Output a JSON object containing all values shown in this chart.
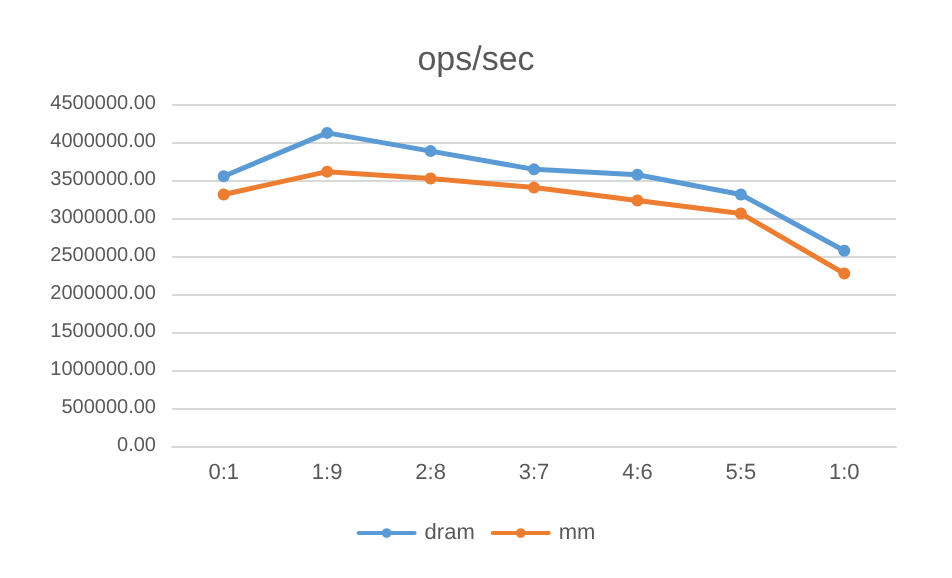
{
  "chart_data": {
    "type": "line",
    "title": "ops/sec",
    "categories": [
      "0:1",
      "1:9",
      "2:8",
      "3:7",
      "4:6",
      "5:5",
      "1:0"
    ],
    "series": [
      {
        "name": "dram",
        "color": "#5b9bd5",
        "values": [
          3550000,
          4120000,
          3880000,
          3640000,
          3570000,
          3310000,
          2570000
        ]
      },
      {
        "name": "mm",
        "color": "#ed7d31",
        "values": [
          3310000,
          3610000,
          3520000,
          3400000,
          3230000,
          3060000,
          2270000
        ]
      }
    ],
    "ylim": [
      0,
      4500000
    ],
    "yticks": [
      {
        "value": 0,
        "label": "0.00"
      },
      {
        "value": 500000,
        "label": "500000.00"
      },
      {
        "value": 1000000,
        "label": "1000000.00"
      },
      {
        "value": 1500000,
        "label": "1500000.00"
      },
      {
        "value": 2000000,
        "label": "2000000.00"
      },
      {
        "value": 2500000,
        "label": "2500000.00"
      },
      {
        "value": 3000000,
        "label": "3000000.00"
      },
      {
        "value": 3500000,
        "label": "3500000.00"
      },
      {
        "value": 4000000,
        "label": "4000000.00"
      },
      {
        "value": 4500000,
        "label": "4500000.00"
      }
    ],
    "grid": "y",
    "legend": "bottom",
    "marker": "circle"
  }
}
